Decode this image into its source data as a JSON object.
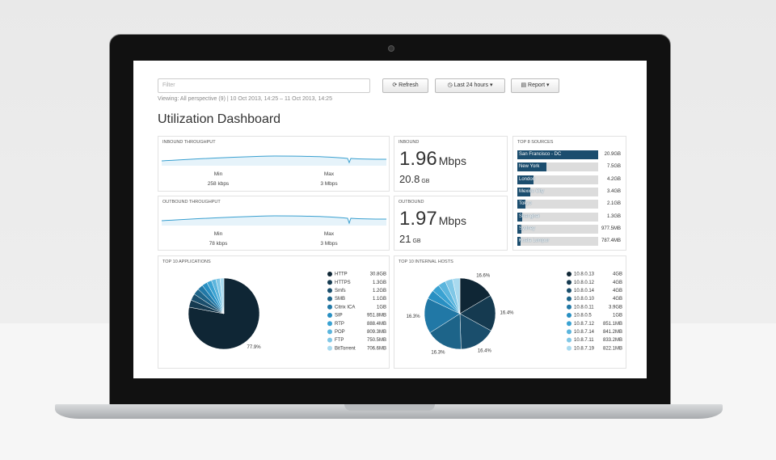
{
  "toolbar": {
    "filter_placeholder": "Filter",
    "refresh": "Refresh",
    "time_range": "Last 24 hours",
    "report": "Report"
  },
  "viewing": "Viewing: All perspective (9) | 10 Oct 2013, 14:25 – 11 Oct 2013, 14:25",
  "title": "Utilization Dashboard",
  "inbound_throughput": {
    "title": "INBOUND THROUGHPUT",
    "min_label": "Min",
    "min": "258 kbps",
    "max_label": "Max",
    "max": "3 Mbps"
  },
  "outbound_throughput": {
    "title": "OUTBOUND THROUGHPUT",
    "min_label": "Min",
    "min": "78 kbps",
    "max_label": "Max",
    "max": "3 Mbps"
  },
  "inbound": {
    "title": "INBOUND",
    "rate": "1.96",
    "rate_unit": "Mbps",
    "volume": "20.8",
    "volume_unit": "GB"
  },
  "outbound": {
    "title": "OUTBOUND",
    "rate": "1.97",
    "rate_unit": "Mbps",
    "volume": "21",
    "volume_unit": "GB"
  },
  "top_sources": {
    "title": "TOP 8 SOURCES",
    "items": [
      {
        "name": "San Francisco - DC",
        "value": 20.9,
        "label": "20.9GB"
      },
      {
        "name": "New York",
        "value": 7.5,
        "label": "7.5GB"
      },
      {
        "name": "London",
        "value": 4.2,
        "label": "4.2GB"
      },
      {
        "name": "Mexico City",
        "value": 3.4,
        "label": "3.4GB"
      },
      {
        "name": "Tokyo",
        "value": 2.1,
        "label": "2.1GB"
      },
      {
        "name": "Shanghai",
        "value": 1.3,
        "label": "1.3GB"
      },
      {
        "name": "Sydney",
        "value": 0.9775,
        "label": "977.5MB"
      },
      {
        "name": "Kuala Lumpur",
        "value": 0.7874,
        "label": "787.4MB"
      }
    ]
  },
  "top_applications": {
    "title": "TOP 10 APPLICATIONS",
    "items": [
      {
        "name": "HTTP",
        "value": 30.8,
        "label": "30.8GB",
        "color": "#0f2635",
        "share_label": "77.9%"
      },
      {
        "name": "HTTPS",
        "value": 1.3,
        "label": "1.3GB",
        "color": "#153a50"
      },
      {
        "name": "Smfs",
        "value": 1.2,
        "label": "1.2GB",
        "color": "#1a4e6c"
      },
      {
        "name": "SMB",
        "value": 1.1,
        "label": "1.1GB",
        "color": "#1d6489"
      },
      {
        "name": "Citrix ICA",
        "value": 1,
        "label": "1GB",
        "color": "#2178a6"
      },
      {
        "name": "SIP",
        "value": 0.9518,
        "label": "951.8MB",
        "color": "#288fc2"
      },
      {
        "name": "RTP",
        "value": 0.8884,
        "label": "888.4MB",
        "color": "#3aa2d2"
      },
      {
        "name": "POP",
        "value": 0.8093,
        "label": "809.3MB",
        "color": "#5bb5dd"
      },
      {
        "name": "FTP",
        "value": 0.7505,
        "label": "750.5MB",
        "color": "#80c7e6"
      },
      {
        "name": "BitTorrent",
        "value": 0.7066,
        "label": "706.6MB",
        "color": "#a9daef"
      }
    ]
  },
  "top_internal_hosts": {
    "title": "TOP 10 INTERNAL HOSTS",
    "items": [
      {
        "name": "10.8.0.13",
        "value": 4,
        "label": "4GB",
        "color": "#0f2635",
        "share_label": "16.6%"
      },
      {
        "name": "10.8.0.12",
        "value": 4,
        "label": "4GB",
        "color": "#153a50",
        "share_label": "16.4%"
      },
      {
        "name": "10.8.0.14",
        "value": 4,
        "label": "4GB",
        "color": "#1a4e6c",
        "share_label": "16.4%"
      },
      {
        "name": "10.8.0.10",
        "value": 4,
        "label": "4GB",
        "color": "#1d6489",
        "share_label": "16.3%"
      },
      {
        "name": "10.8.0.11",
        "value": 3.9,
        "label": "3.9GB",
        "color": "#2178a6",
        "share_label": "16.3%"
      },
      {
        "name": "10.8.0.5",
        "value": 1,
        "label": "1GB",
        "color": "#288fc2"
      },
      {
        "name": "10.8.7.12",
        "value": 0.8511,
        "label": "851.1MB",
        "color": "#3aa2d2"
      },
      {
        "name": "10.8.7.14",
        "value": 0.8412,
        "label": "841.2MB",
        "color": "#5bb5dd"
      },
      {
        "name": "10.8.7.11",
        "value": 0.8332,
        "label": "833.2MB",
        "color": "#80c7e6"
      },
      {
        "name": "10.8.7.19",
        "value": 0.8221,
        "label": "822.1MB",
        "color": "#a9daef"
      }
    ]
  }
}
